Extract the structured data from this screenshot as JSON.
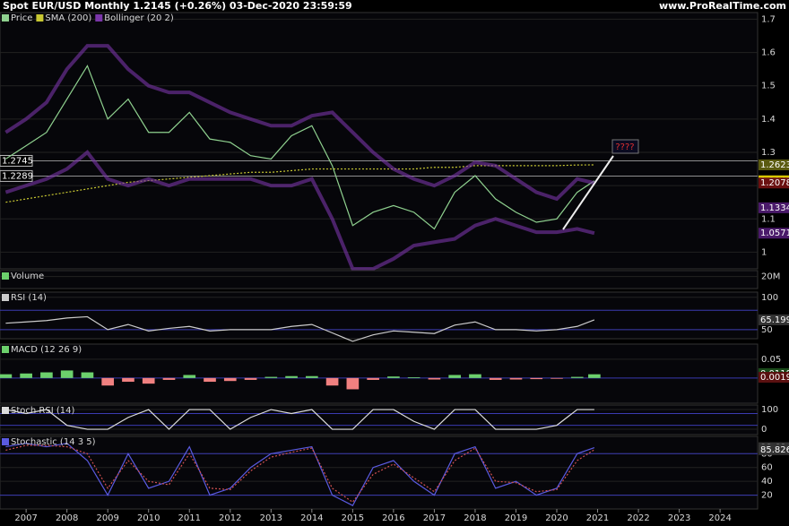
{
  "header": {
    "title": "Spot EUR/USD Monthly 1.2145 (+0.26%) 03-Dec-2020 23:59:59",
    "site": "www.ProRealTime.com"
  },
  "chart_data": [
    {
      "type": "line",
      "annotation": "????",
      "x": [
        2006.5,
        2007,
        2007.5,
        2008,
        2008.5,
        2009,
        2009.5,
        2010,
        2010.5,
        2011,
        2011.5,
        2012,
        2012.5,
        2013,
        2013.5,
        2014,
        2014.5,
        2015,
        2015.5,
        2016,
        2016.5,
        2017,
        2017.5,
        2018,
        2018.5,
        2019,
        2019.5,
        2020,
        2020.5,
        2020.92
      ],
      "xlim": [
        2006.36,
        2024.92
      ],
      "ylim": [
        0.95,
        1.72
      ],
      "yticks": [
        1,
        1.1,
        1.2,
        1.3,
        1.4,
        1.5,
        1.6,
        1.7
      ],
      "series": [
        {
          "name": "Price",
          "color": "#8fd18f",
          "kind": "line",
          "values": [
            1.28,
            1.32,
            1.36,
            1.46,
            1.56,
            1.4,
            1.46,
            1.36,
            1.36,
            1.42,
            1.34,
            1.33,
            1.29,
            1.28,
            1.35,
            1.38,
            1.26,
            1.08,
            1.12,
            1.14,
            1.12,
            1.07,
            1.18,
            1.23,
            1.16,
            1.12,
            1.09,
            1.1,
            1.18,
            1.2145
          ]
        },
        {
          "name": "SMA (200)",
          "color": "#c8c832",
          "kind": "dotted",
          "values": [
            1.15,
            1.16,
            1.17,
            1.18,
            1.19,
            1.2,
            1.21,
            1.215,
            1.22,
            1.225,
            1.23,
            1.235,
            1.24,
            1.24,
            1.245,
            1.25,
            1.25,
            1.25,
            1.25,
            1.25,
            1.25,
            1.255,
            1.255,
            1.26,
            1.26,
            1.26,
            1.26,
            1.26,
            1.262,
            1.2623
          ]
        },
        {
          "name": "Bollinger (20 2)",
          "color": "#7a36a8",
          "kind": "band",
          "values": [
            1.36,
            1.4,
            1.45,
            1.55,
            1.62,
            1.62,
            1.55,
            1.5,
            1.48,
            1.48,
            1.45,
            1.42,
            1.4,
            1.38,
            1.38,
            1.41,
            1.42,
            1.36,
            1.3,
            1.25,
            1.22,
            1.2,
            1.23,
            1.27,
            1.26,
            1.22,
            1.18,
            1.16,
            1.22,
            1.2078
          ]
        },
        {
          "color": "#7a36a8",
          "kind": "band",
          "values": [
            1.18,
            1.2,
            1.22,
            1.25,
            1.3,
            1.22,
            1.2,
            1.22,
            1.2,
            1.22,
            1.22,
            1.22,
            1.22,
            1.2,
            1.2,
            1.22,
            1.1,
            0.95,
            0.95,
            0.98,
            1.02,
            1.03,
            1.04,
            1.08,
            1.1,
            1.08,
            1.06,
            1.06,
            1.07,
            1.0571
          ]
        }
      ],
      "hlines": [
        1.2745,
        1.2289
      ],
      "markers": [
        {
          "value": 1.2623,
          "color": "#5a5a10"
        },
        {
          "value": 1.2145,
          "color": "#d8c800"
        },
        {
          "value": 1.2078,
          "color": "#6a1010"
        },
        {
          "value": 1.1334,
          "color": "#4a1a6a"
        },
        {
          "value": 1.0571,
          "color": "#4a1a6a"
        }
      ]
    },
    {
      "type": "bar",
      "ylim": [
        0,
        30000000
      ],
      "yticks": [
        {
          "value": 20000000,
          "label": "20M"
        }
      ],
      "series": [
        {
          "name": "Volume",
          "color": "#6cd06c",
          "kind": "bar",
          "values": []
        }
      ]
    },
    {
      "type": "line",
      "x": [
        2006.5,
        2007,
        2007.5,
        2008,
        2008.5,
        2009,
        2009.5,
        2010,
        2010.5,
        2011,
        2011.5,
        2012,
        2012.5,
        2013,
        2013.5,
        2014,
        2014.5,
        2015,
        2015.5,
        2016,
        2016.5,
        2017,
        2017.5,
        2018,
        2018.5,
        2019,
        2019.5,
        2020,
        2020.5,
        2020.92
      ],
      "xlim": [
        2006.36,
        2024.92
      ],
      "ylim": [
        36,
        108
      ],
      "yticks": [
        50,
        100
      ],
      "levels": [
        80,
        50
      ],
      "series": [
        {
          "name": "RSI (14)",
          "color": "#cccccc",
          "kind": "line",
          "values": [
            60,
            62,
            64,
            68,
            70,
            50,
            58,
            48,
            52,
            55,
            48,
            50,
            50,
            50,
            55,
            58,
            45,
            32,
            42,
            48,
            46,
            44,
            57,
            62,
            50,
            50,
            48,
            50,
            55,
            65.199
          ]
        }
      ],
      "markers": [
        {
          "value": 65.199,
          "color": "#333333"
        }
      ]
    },
    {
      "type": "bar",
      "x": [
        2006.5,
        2007,
        2007.5,
        2008,
        2008.5,
        2009,
        2009.5,
        2010,
        2010.5,
        2011,
        2011.5,
        2012,
        2012.5,
        2013,
        2013.5,
        2014,
        2014.5,
        2015,
        2015.5,
        2016,
        2016.5,
        2017,
        2017.5,
        2018,
        2018.5,
        2019,
        2019.5,
        2020,
        2020.5,
        2020.92
      ],
      "xlim": [
        2006.36,
        2024.92
      ],
      "ylim": [
        -0.067,
        0.09
      ],
      "yticks": [
        0.05
      ],
      "levels": [
        0
      ],
      "series": [
        {
          "name": "MACD (12 26 9)",
          "color": "#6cd06c",
          "neg_color": "#f08080",
          "kind": "bar",
          "values": [
            0.01,
            0.012,
            0.015,
            0.02,
            0.015,
            -0.02,
            -0.01,
            -0.015,
            -0.005,
            0.008,
            -0.01,
            -0.008,
            -0.005,
            0.003,
            0.005,
            0.005,
            -0.02,
            -0.03,
            -0.005,
            0.004,
            0.002,
            -0.004,
            0.008,
            0.01,
            -0.005,
            -0.004,
            -0.003,
            -0.002,
            0.003,
            0.0099
          ]
        }
      ],
      "markers": [
        {
          "value": 0.0118,
          "color": "#1a4a1a"
        },
        {
          "value": 0.0019,
          "color": "#5a1010"
        }
      ]
    },
    {
      "type": "line",
      "x": [
        2006.5,
        2007,
        2007.5,
        2008,
        2008.5,
        2009,
        2009.5,
        2010,
        2010.5,
        2011,
        2011.5,
        2012,
        2012.5,
        2013,
        2013.5,
        2014,
        2014.5,
        2015,
        2015.5,
        2016,
        2016.5,
        2017,
        2017.5,
        2018,
        2018.5,
        2019,
        2019.5,
        2020,
        2020.5,
        2020.92
      ],
      "xlim": [
        2006.36,
        2024.92
      ],
      "ylim": [
        -27,
        123
      ],
      "yticks": [
        0,
        100
      ],
      "levels": [
        80,
        20
      ],
      "series": [
        {
          "name": "Stoch RSI (14)",
          "color": "#dddddd",
          "kind": "line",
          "values": [
            100,
            80,
            100,
            20,
            0,
            0,
            60,
            100,
            0,
            100,
            100,
            0,
            60,
            100,
            80,
            100,
            0,
            0,
            100,
            100,
            40,
            0,
            100,
            100,
            0,
            0,
            0,
            20,
            100,
            100
          ]
        }
      ]
    },
    {
      "type": "line",
      "x": [
        2006.5,
        2007,
        2007.5,
        2008,
        2008.5,
        2009,
        2009.5,
        2010,
        2010.5,
        2011,
        2011.5,
        2012,
        2012.5,
        2013,
        2013.5,
        2014,
        2014.5,
        2015,
        2015.5,
        2016,
        2016.5,
        2017,
        2017.5,
        2018,
        2018.5,
        2019,
        2019.5,
        2020,
        2020.5,
        2020.92
      ],
      "xlim": [
        2006.36,
        2024.92
      ],
      "xticks": [
        2007,
        2008,
        2009,
        2010,
        2011,
        2012,
        2013,
        2014,
        2015,
        2016,
        2017,
        2018,
        2019,
        2020,
        2021,
        2022,
        2023,
        2024
      ],
      "ylim": [
        0,
        105
      ],
      "yticks": [
        20,
        40,
        60,
        80
      ],
      "levels": [
        80,
        20
      ],
      "series": [
        {
          "name": "Stochastic (14 3 5)",
          "color": "#5a5ae0",
          "kind": "line",
          "values": [
            90,
            95,
            90,
            95,
            70,
            20,
            80,
            30,
            40,
            90,
            20,
            30,
            60,
            80,
            85,
            90,
            20,
            5,
            60,
            70,
            40,
            20,
            80,
            90,
            30,
            40,
            20,
            30,
            80,
            88.684
          ]
        },
        {
          "color": "#d05050",
          "kind": "dotted",
          "values": [
            85,
            92,
            92,
            90,
            80,
            30,
            70,
            40,
            35,
            80,
            30,
            28,
            55,
            75,
            82,
            88,
            30,
            10,
            50,
            65,
            45,
            25,
            70,
            88,
            40,
            38,
            25,
            28,
            70,
            85.826
          ]
        }
      ],
      "markers": [
        {
          "value": 88.684,
          "color": "#333333"
        },
        {
          "value": 85.826,
          "color": "#333333"
        }
      ]
    }
  ]
}
